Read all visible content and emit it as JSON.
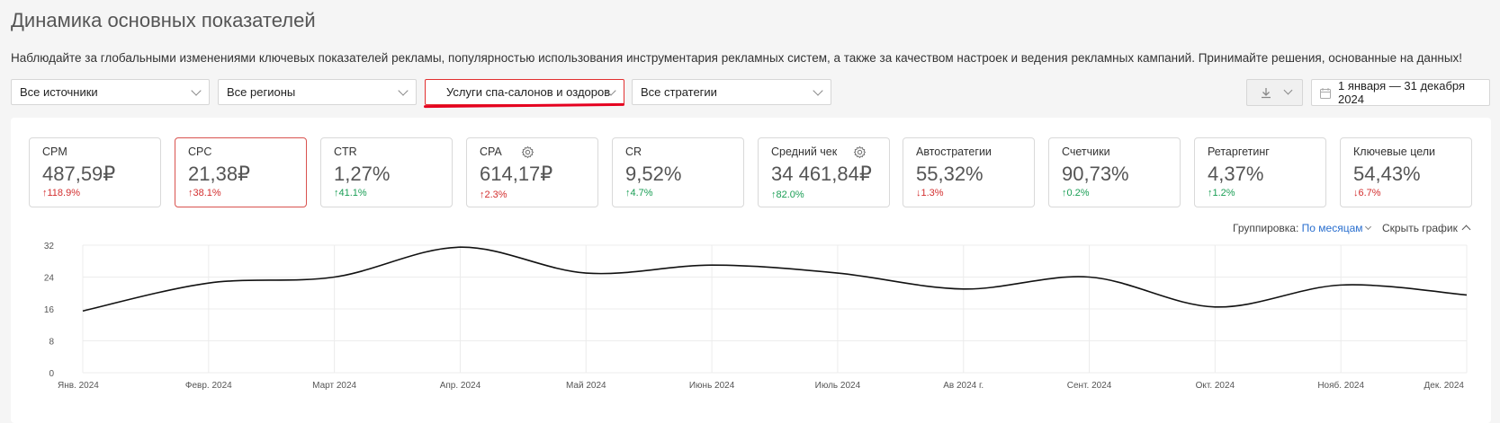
{
  "header": {
    "title": "Динамика основных показателей",
    "description": "Наблюдайте за глобальными изменениями ключевых показателей рекламы, популярностью использования инструментария рекламных систем, а также за качеством настроек и ведения рекламных кампаний. Принимайте решения, основанные на данных!"
  },
  "filters": {
    "sources": "Все источники",
    "regions": "Все регионы",
    "category": "Услуги спа-салонов и оздоров",
    "strategies": "Все стратегии",
    "date_range": "1 января — 31 декабря 2024"
  },
  "metrics": [
    {
      "label": "CPM",
      "value": "487,59₽",
      "change": "↑118.9%",
      "trend": "up-red",
      "gear": false
    },
    {
      "label": "CPC",
      "value": "21,38₽",
      "change": "↑38.1%",
      "trend": "up-red",
      "gear": false,
      "selected": true
    },
    {
      "label": "CTR",
      "value": "1,27%",
      "change": "↑41.1%",
      "trend": "up-green",
      "gear": false
    },
    {
      "label": "CPA",
      "value": "614,17₽",
      "change": "↑2.3%",
      "trend": "up-red",
      "gear": true
    },
    {
      "label": "CR",
      "value": "9,52%",
      "change": "↑4.7%",
      "trend": "up-green",
      "gear": false
    },
    {
      "label": "Средний чек",
      "value": "34 461,84₽",
      "change": "↑82.0%",
      "trend": "up-green",
      "gear": true
    },
    {
      "label": "Автостратегии",
      "value": "55,32%",
      "change": "↓1.3%",
      "trend": "down-red",
      "gear": false
    },
    {
      "label": "Счетчики",
      "value": "90,73%",
      "change": "↑0.2%",
      "trend": "up-green",
      "gear": false
    },
    {
      "label": "Ретаргетинг",
      "value": "4,37%",
      "change": "↑1.2%",
      "trend": "up-green",
      "gear": false
    },
    {
      "label": "Ключевые цели",
      "value": "54,43%",
      "change": "↓6.7%",
      "trend": "down-red",
      "gear": false
    }
  ],
  "chart_controls": {
    "grouping_label": "Группировка:",
    "grouping_value": "По месяцам",
    "hide_label": "Скрыть график"
  },
  "colors": {
    "up_red": "#d32f2f",
    "up_green": "#1a9e55",
    "accent_blue": "#2a6fcf",
    "selected_border": "#d9534f",
    "line": "#111111"
  },
  "chart_data": {
    "type": "line",
    "categories": [
      "Янв. 2024",
      "Февр. 2024",
      "Март 2024",
      "Апр. 2024",
      "Май 2024",
      "Июнь 2024",
      "Июль 2024",
      "Ав 2024 г.",
      "Сент. 2024",
      "Окт. 2024",
      "Нояб. 2024",
      "Дек. 2024"
    ],
    "series": [
      {
        "values": [
          15.5,
          22.5,
          24,
          31.5,
          25,
          27,
          25,
          21,
          24,
          16.5,
          22,
          19.5
        ]
      }
    ],
    "y_ticks": [
      "0",
      "8",
      "16",
      "24",
      "32"
    ],
    "ylim": [
      0,
      32
    ],
    "grid": true
  }
}
